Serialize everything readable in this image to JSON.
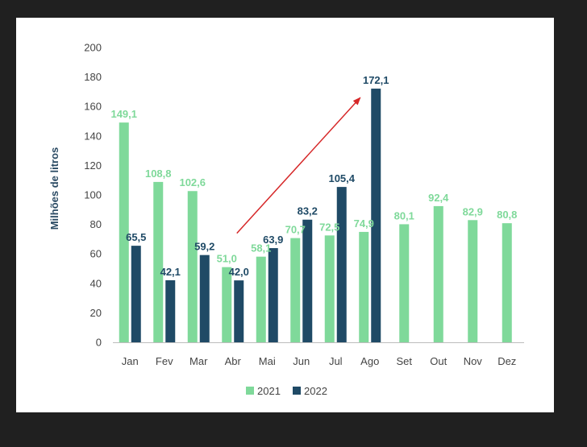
{
  "chart_data": {
    "type": "bar",
    "title": "",
    "xlabel": "",
    "ylabel": "Milhões de litros",
    "ylim": [
      0,
      200
    ],
    "yticks": [
      "0",
      "20",
      "40",
      "60",
      "80",
      "100",
      "120",
      "140",
      "160",
      "180",
      "200"
    ],
    "categories": [
      "Jan",
      "Fev",
      "Mar",
      "Abr",
      "Mai",
      "Jun",
      "Jul",
      "Ago",
      "Set",
      "Out",
      "Nov",
      "Dez"
    ],
    "series": [
      {
        "name": "2021",
        "color": "#7fd99a",
        "values": [
          149.1,
          108.8,
          102.6,
          51.0,
          58.1,
          70.7,
          72.5,
          74.9,
          80.1,
          92.4,
          82.9,
          80.8
        ],
        "labels": [
          "149,1",
          "108,8",
          "102,6",
          "51,0",
          "58,1",
          "70,7",
          "72,5",
          "74,9",
          "80,1",
          "92,4",
          "82,9",
          "80,8"
        ]
      },
      {
        "name": "2022",
        "color": "#1f4a66",
        "values": [
          65.5,
          42.1,
          59.2,
          42.0,
          63.9,
          83.2,
          105.4,
          172.1,
          null,
          null,
          null,
          null
        ],
        "labels": [
          "65,5",
          "42,1",
          "59,2",
          "42,0",
          "63,9",
          "83,2",
          "105,4",
          "172,1",
          "",
          "",
          "",
          ""
        ]
      }
    ],
    "annotations": [
      {
        "type": "arrow",
        "color": "#d62728",
        "from": {
          "category": "Abr",
          "value": 74
        },
        "to": {
          "category": "Ago",
          "value": 166
        }
      }
    ],
    "legend": "bottom-center",
    "grid": false
  }
}
